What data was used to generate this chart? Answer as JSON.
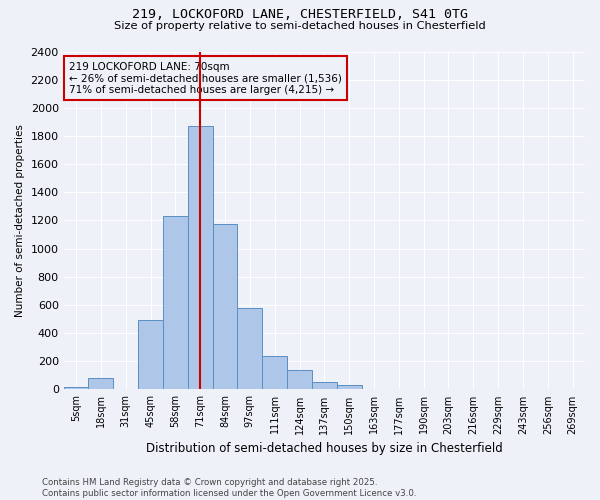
{
  "title_line1": "219, LOCKOFORD LANE, CHESTERFIELD, S41 0TG",
  "title_line2": "Size of property relative to semi-detached houses in Chesterfield",
  "xlabel": "Distribution of semi-detached houses by size in Chesterfield",
  "ylabel": "Number of semi-detached properties",
  "categories": [
    "5sqm",
    "18sqm",
    "31sqm",
    "45sqm",
    "58sqm",
    "71sqm",
    "84sqm",
    "97sqm",
    "111sqm",
    "124sqm",
    "137sqm",
    "150sqm",
    "163sqm",
    "177sqm",
    "190sqm",
    "203sqm",
    "216sqm",
    "229sqm",
    "243sqm",
    "256sqm",
    "269sqm"
  ],
  "values": [
    15,
    80,
    0,
    490,
    1230,
    1870,
    1175,
    580,
    240,
    135,
    55,
    30,
    0,
    0,
    0,
    0,
    0,
    0,
    0,
    0,
    0
  ],
  "bar_color": "#aec6e8",
  "bar_edge_color": "#5a8fc4",
  "vline_color": "#cc0000",
  "vline_pos": 5,
  "annotation_text": "219 LOCKOFORD LANE: 70sqm\n← 26% of semi-detached houses are smaller (1,536)\n71% of semi-detached houses are larger (4,215) →",
  "ylim": [
    0,
    2400
  ],
  "yticks": [
    0,
    200,
    400,
    600,
    800,
    1000,
    1200,
    1400,
    1600,
    1800,
    2000,
    2200,
    2400
  ],
  "footnote": "Contains HM Land Registry data © Crown copyright and database right 2025.\nContains public sector information licensed under the Open Government Licence v3.0.",
  "bg_color": "#eef2f8",
  "grid_color": "#ffffff"
}
